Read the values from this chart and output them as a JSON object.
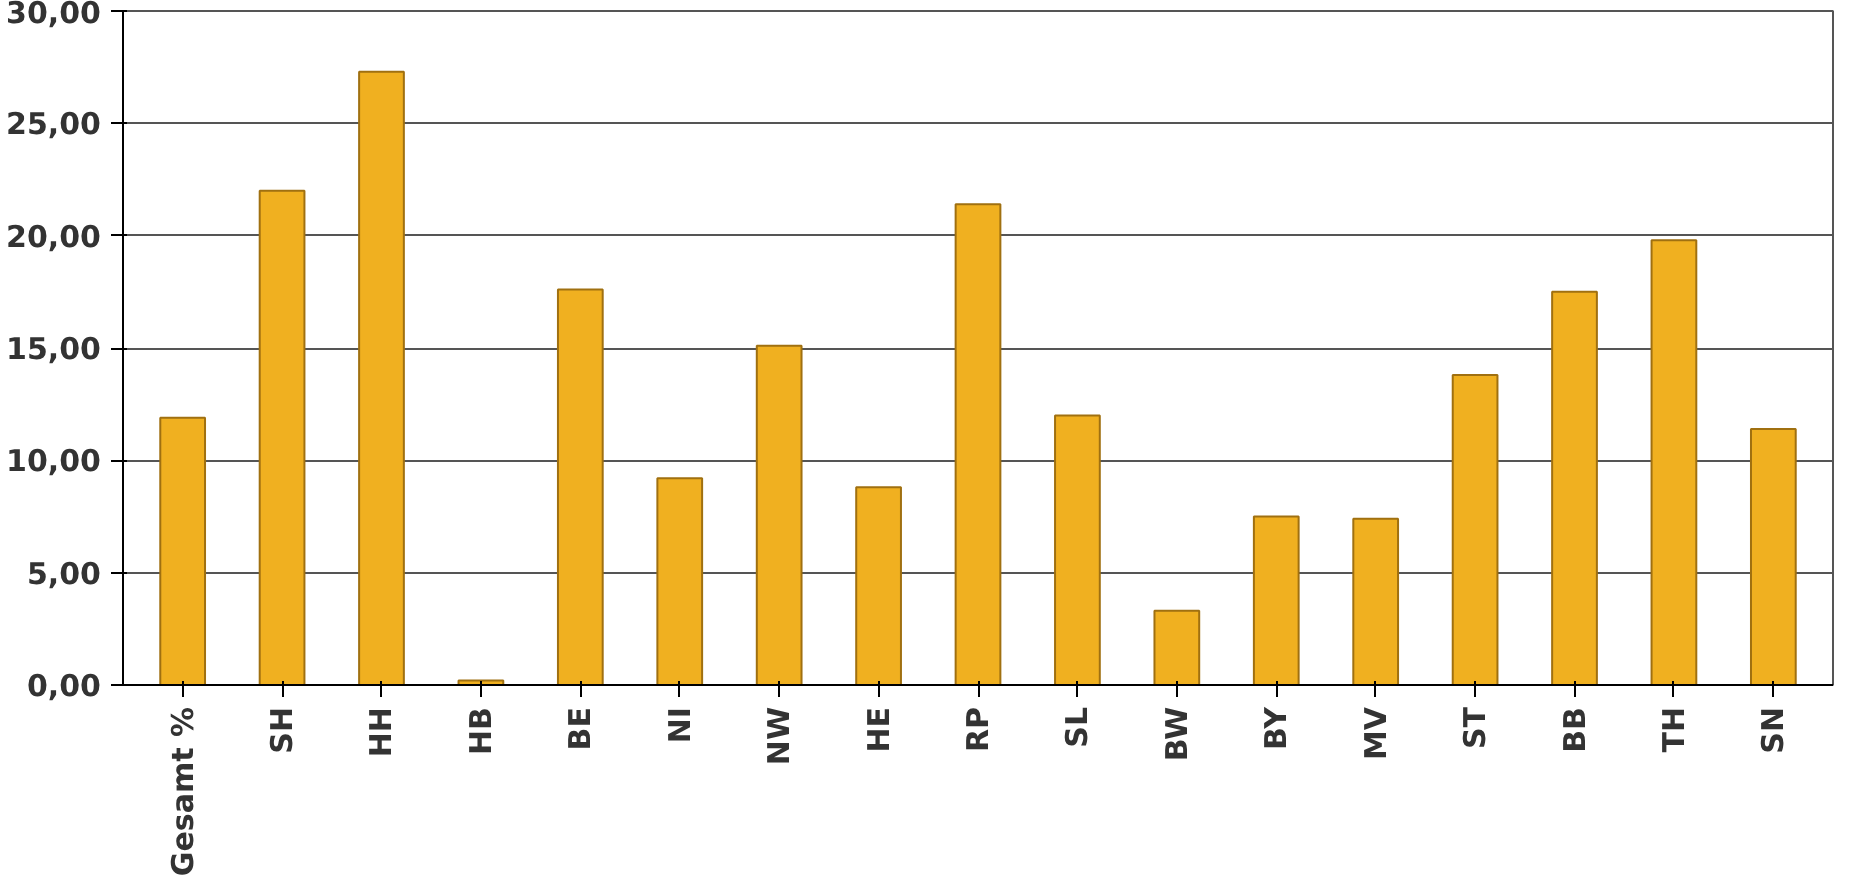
{
  "chart_data": {
    "type": "bar",
    "categories": [
      "Gesamt %",
      "SH",
      "HH",
      "HB",
      "BE",
      "NI",
      "NW",
      "HE",
      "RP",
      "SL",
      "BW",
      "BY",
      "MV",
      "ST",
      "BB",
      "TH",
      "SN"
    ],
    "values": [
      11.9,
      22.0,
      27.3,
      0.2,
      17.6,
      9.2,
      15.1,
      8.8,
      21.4,
      12.0,
      3.3,
      7.5,
      7.4,
      13.8,
      17.5,
      19.8,
      11.4
    ],
    "color": "#f0b020",
    "ylim": [
      0,
      30
    ],
    "yticks": [
      {
        "value": 0,
        "label": "0,00"
      },
      {
        "value": 5,
        "label": "5,00"
      },
      {
        "value": 10,
        "label": "10,00"
      },
      {
        "value": 15,
        "label": "15,00"
      },
      {
        "value": 20,
        "label": "20,00"
      },
      {
        "value": 25,
        "label": "25,00"
      },
      {
        "value": 30,
        "label": "30,00"
      }
    ],
    "grid": "y"
  }
}
